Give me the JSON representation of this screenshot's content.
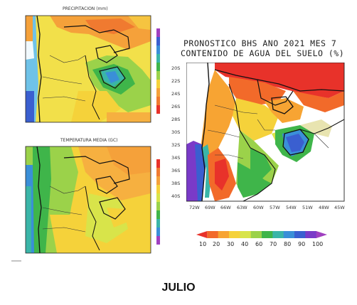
{
  "maps": {
    "precip": {
      "title": "PRECIPITACION (mm)"
    },
    "temp": {
      "title": "TEMPERATURA MEDIA (GC)"
    },
    "soil": {
      "title_line1": "PRONOSTICO BHS ANO 2021 MES 7",
      "title_line2": "CONTENIDO DE AGUA DEL SUELO (%)",
      "lat_labels": [
        "20S",
        "22S",
        "24S",
        "26S",
        "28S",
        "30S",
        "32S",
        "34S",
        "36S",
        "38S",
        "40S"
      ],
      "lon_labels": [
        "72W",
        "69W",
        "66W",
        "63W",
        "60W",
        "57W",
        "54W",
        "51W",
        "48W",
        "45W"
      ],
      "colorbar_labels": [
        "10",
        "20",
        "30",
        "40",
        "60",
        "70",
        "80",
        "90",
        "100"
      ],
      "colorbar_colors": [
        "#e8322a",
        "#f26a2a",
        "#f7a433",
        "#f5d23a",
        "#d8e44a",
        "#9bd24a",
        "#3fb54a",
        "#3ab5a8",
        "#3a8fd8",
        "#3a5fd0",
        "#7a3ac8",
        "#a040c0"
      ]
    }
  },
  "caption": "JULIO"
}
